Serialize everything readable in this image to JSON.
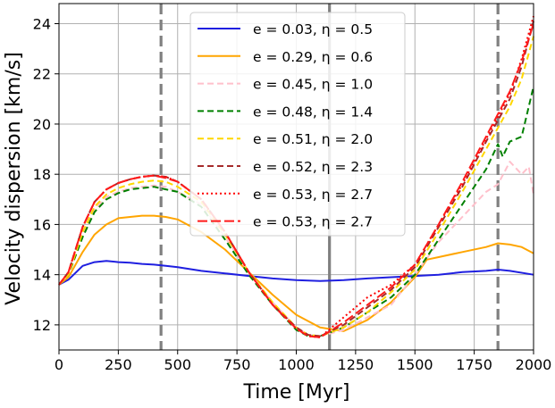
{
  "chart_data": {
    "type": "line",
    "title": "",
    "xlabel": "Time [Myr]",
    "ylabel": "Velocity dispersion [km/s]",
    "xlim": [
      0,
      2000
    ],
    "ylim": [
      11,
      24.8
    ],
    "xticks": [
      0,
      250,
      500,
      750,
      1000,
      1250,
      1500,
      1750,
      2000
    ],
    "yticks": [
      12,
      14,
      16,
      18,
      20,
      22,
      24
    ],
    "grid": true,
    "legend_position": "top-center",
    "vlines": [
      {
        "x": 430,
        "style": "dashed",
        "color": "#808080"
      },
      {
        "x": 1140,
        "style": "solid",
        "color": "#808080"
      },
      {
        "x": 1850,
        "style": "dashed",
        "color": "#808080"
      }
    ],
    "series": [
      {
        "name": "e = 0.03, η = 0.5",
        "color": "#1f1fe0",
        "style": "solid",
        "x": [
          0,
          40,
          100,
          150,
          200,
          250,
          300,
          350,
          400,
          450,
          500,
          600,
          700,
          800,
          900,
          1000,
          1100,
          1200,
          1300,
          1400,
          1500,
          1600,
          1700,
          1800,
          1850,
          1900,
          2000
        ],
        "y": [
          13.6,
          13.8,
          14.35,
          14.5,
          14.55,
          14.5,
          14.48,
          14.43,
          14.4,
          14.35,
          14.3,
          14.15,
          14.05,
          13.95,
          13.85,
          13.78,
          13.75,
          13.78,
          13.85,
          13.9,
          13.95,
          14.0,
          14.1,
          14.15,
          14.2,
          14.15,
          14.0
        ]
      },
      {
        "name": "e = 0.29, η = 0.6",
        "color": "#ffa500",
        "style": "solid",
        "x": [
          0,
          40,
          100,
          150,
          200,
          250,
          300,
          350,
          400,
          450,
          500,
          600,
          700,
          800,
          900,
          1000,
          1100,
          1200,
          1300,
          1400,
          1500,
          1550,
          1600,
          1700,
          1800,
          1850,
          1900,
          1950,
          2000
        ],
        "y": [
          13.6,
          13.9,
          14.9,
          15.6,
          16.0,
          16.25,
          16.3,
          16.35,
          16.35,
          16.3,
          16.2,
          15.7,
          15.0,
          14.1,
          13.2,
          12.4,
          11.9,
          11.75,
          12.2,
          12.9,
          13.9,
          14.6,
          14.7,
          14.9,
          15.1,
          15.25,
          15.2,
          15.1,
          14.85
        ]
      },
      {
        "name": "e = 0.45, η = 1.0",
        "color": "#ffc0cb",
        "style": "dashed",
        "x": [
          0,
          40,
          100,
          150,
          200,
          250,
          300,
          350,
          400,
          450,
          500,
          600,
          700,
          800,
          900,
          1000,
          1050,
          1100,
          1200,
          1300,
          1400,
          1500,
          1600,
          1700,
          1800,
          1850,
          1900,
          1950,
          1980,
          2000
        ],
        "y": [
          13.6,
          14.0,
          15.6,
          16.6,
          17.1,
          17.3,
          17.45,
          17.5,
          17.55,
          17.5,
          17.3,
          16.8,
          15.5,
          14.1,
          12.9,
          11.9,
          11.6,
          11.55,
          11.8,
          12.3,
          12.8,
          14.0,
          15.3,
          16.3,
          17.3,
          17.6,
          18.5,
          18.0,
          18.3,
          17.2
        ]
      },
      {
        "name": "e = 0.48, η = 1.4",
        "color": "#008000",
        "style": "dashed",
        "x": [
          0,
          40,
          100,
          150,
          200,
          250,
          300,
          350,
          400,
          450,
          500,
          600,
          700,
          800,
          900,
          1000,
          1050,
          1100,
          1200,
          1300,
          1400,
          1500,
          1600,
          1700,
          1800,
          1850,
          1870,
          1900,
          1950,
          2000
        ],
        "y": [
          13.6,
          14.0,
          15.5,
          16.5,
          17.0,
          17.25,
          17.4,
          17.45,
          17.5,
          17.4,
          17.3,
          16.7,
          15.4,
          14.0,
          12.8,
          11.8,
          11.55,
          11.55,
          11.9,
          12.5,
          13.1,
          14.0,
          15.4,
          16.8,
          18.2,
          19.2,
          18.7,
          19.3,
          19.5,
          21.5
        ]
      },
      {
        "name": "e = 0.51, η = 2.0",
        "color": "#ffd700",
        "style": "dashed",
        "x": [
          0,
          40,
          100,
          150,
          200,
          250,
          300,
          350,
          400,
          450,
          500,
          600,
          700,
          800,
          900,
          1000,
          1050,
          1100,
          1200,
          1300,
          1400,
          1500,
          1600,
          1700,
          1800,
          1900,
          1950,
          2000
        ],
        "y": [
          13.6,
          14.0,
          15.7,
          16.7,
          17.2,
          17.45,
          17.6,
          17.7,
          17.75,
          17.7,
          17.5,
          16.9,
          15.6,
          14.1,
          12.9,
          11.9,
          11.6,
          11.55,
          11.9,
          12.5,
          13.3,
          14.2,
          15.7,
          17.3,
          19.0,
          20.7,
          21.8,
          23.5
        ]
      },
      {
        "name": "e = 0.52, η = 2.3",
        "color": "#a52a2a",
        "style": "dashed",
        "x": [
          0,
          40,
          100,
          150,
          200,
          250,
          300,
          350,
          400,
          450,
          500,
          600,
          700,
          800,
          900,
          1000,
          1050,
          1100,
          1200,
          1300,
          1400,
          1500,
          1600,
          1700,
          1800,
          1900,
          1950,
          2000
        ],
        "y": [
          13.6,
          14.1,
          15.9,
          16.9,
          17.4,
          17.65,
          17.8,
          17.9,
          17.95,
          17.9,
          17.7,
          17.0,
          15.7,
          14.1,
          12.8,
          11.9,
          11.6,
          11.55,
          12.0,
          12.7,
          13.4,
          14.3,
          15.9,
          17.5,
          19.3,
          21.0,
          22.3,
          24.1
        ]
      },
      {
        "name": "e = 0.53, η = 2.7",
        "color": "#ff0000",
        "style": "dotted",
        "x": [
          0,
          40,
          100,
          150,
          200,
          250,
          300,
          350,
          400,
          450,
          500,
          600,
          700,
          800,
          900,
          1000,
          1050,
          1100,
          1200,
          1300,
          1400,
          1500,
          1600,
          1700,
          1800,
          1900,
          1950,
          2000
        ],
        "y": [
          13.6,
          14.1,
          15.9,
          16.9,
          17.4,
          17.65,
          17.8,
          17.9,
          17.95,
          17.9,
          17.7,
          17.0,
          15.7,
          14.1,
          12.8,
          11.85,
          11.55,
          11.5,
          12.3,
          13.1,
          13.6,
          14.4,
          16.0,
          17.6,
          19.4,
          21.2,
          22.6,
          24.3
        ]
      },
      {
        "name": "e = 0.53, η = 2.7",
        "color": "#ff1a1a",
        "style": "longdash",
        "x": [
          0,
          40,
          100,
          150,
          200,
          250,
          300,
          350,
          400,
          450,
          500,
          600,
          700,
          800,
          900,
          1000,
          1050,
          1100,
          1200,
          1300,
          1400,
          1500,
          1600,
          1700,
          1800,
          1900,
          1950,
          2000
        ],
        "y": [
          13.6,
          14.1,
          15.9,
          16.9,
          17.4,
          17.65,
          17.8,
          17.9,
          17.95,
          17.85,
          17.7,
          17.0,
          15.7,
          14.1,
          12.8,
          11.85,
          11.55,
          11.5,
          12.1,
          12.8,
          13.5,
          14.4,
          16.0,
          17.7,
          19.5,
          21.3,
          22.5,
          24.0
        ]
      }
    ]
  }
}
